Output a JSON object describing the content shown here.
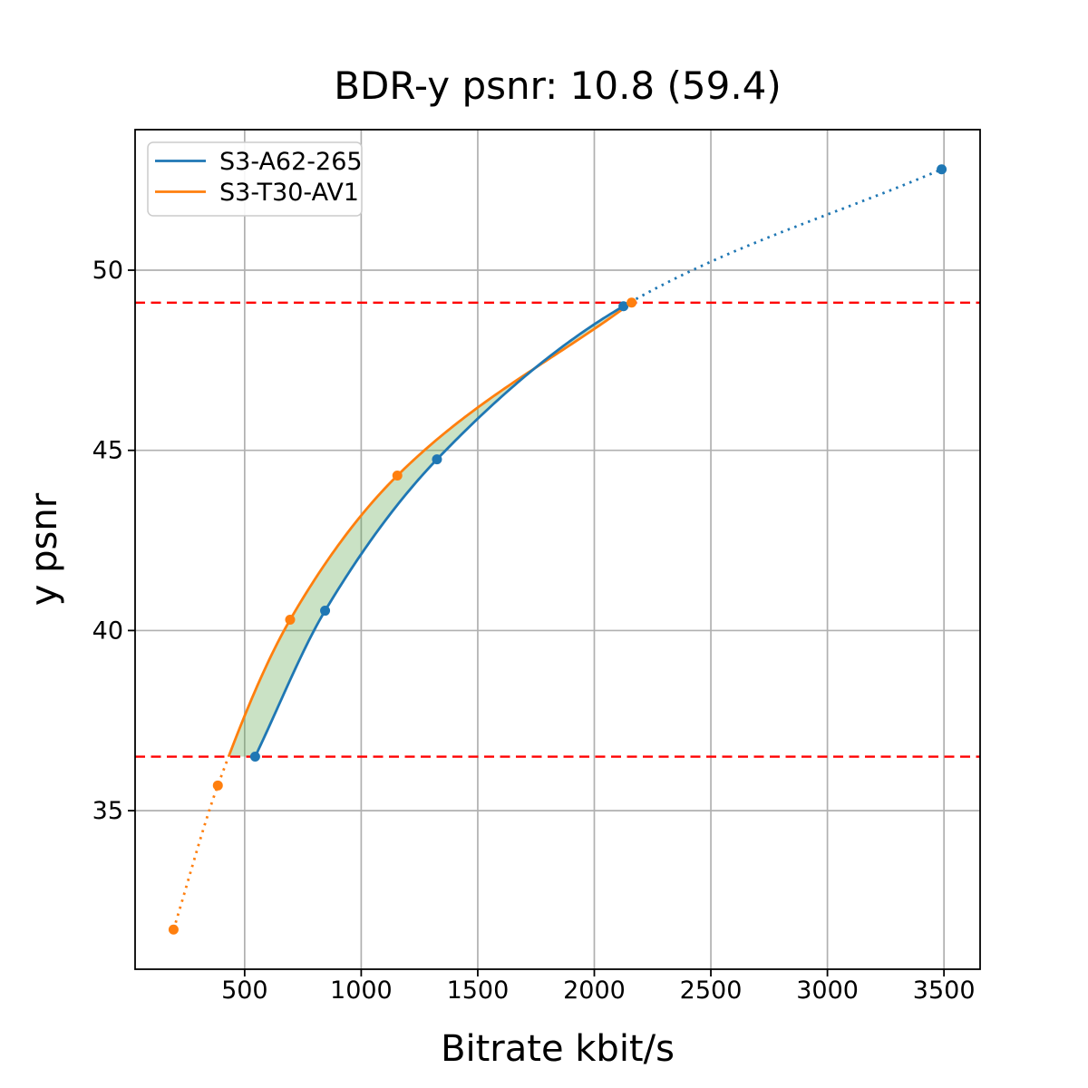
{
  "figure": {
    "background": "#ffffff"
  },
  "chart_data": {
    "type": "line",
    "title": "BDR-y psnr: 10.8 (59.4)",
    "xlabel": "Bitrate kbit/s",
    "ylabel": "y psnr",
    "xlim": [
      30,
      3655
    ],
    "ylim": [
      30.6,
      53.9
    ],
    "xticks": [
      500,
      1000,
      1500,
      2000,
      2500,
      3000,
      3500
    ],
    "yticks": [
      35,
      40,
      45,
      50
    ],
    "grid": true,
    "grid_color": "#b0b0b0",
    "spine_color": "#000000",
    "legend": {
      "position": "upper left",
      "entries": [
        "S3-A62-265",
        "S3-T30-AV1"
      ],
      "border_color": "#cccccc",
      "background": "#ffffff"
    },
    "series": [
      {
        "name": "S3-A62-265",
        "color": "#1f77b4",
        "x": [
          545,
          845,
          1325,
          2125,
          3490
        ],
        "y": [
          36.5,
          40.55,
          44.75,
          49.0,
          52.8
        ]
      },
      {
        "name": "S3-T30-AV1",
        "color": "#ff7f0e",
        "x": [
          195,
          385,
          695,
          1155,
          2160
        ],
        "y": [
          31.7,
          35.7,
          40.3,
          44.3,
          49.1
        ]
      }
    ],
    "overlap_lines": {
      "color": "#ff0000",
      "style": "dashed",
      "y_low": 36.5,
      "y_high": 49.1
    },
    "bd_region_fill": "rgba(80,158,62,0.30)",
    "annotations": {
      "bdr_value": "10.8",
      "bdr_alt_value": "59.4"
    }
  }
}
